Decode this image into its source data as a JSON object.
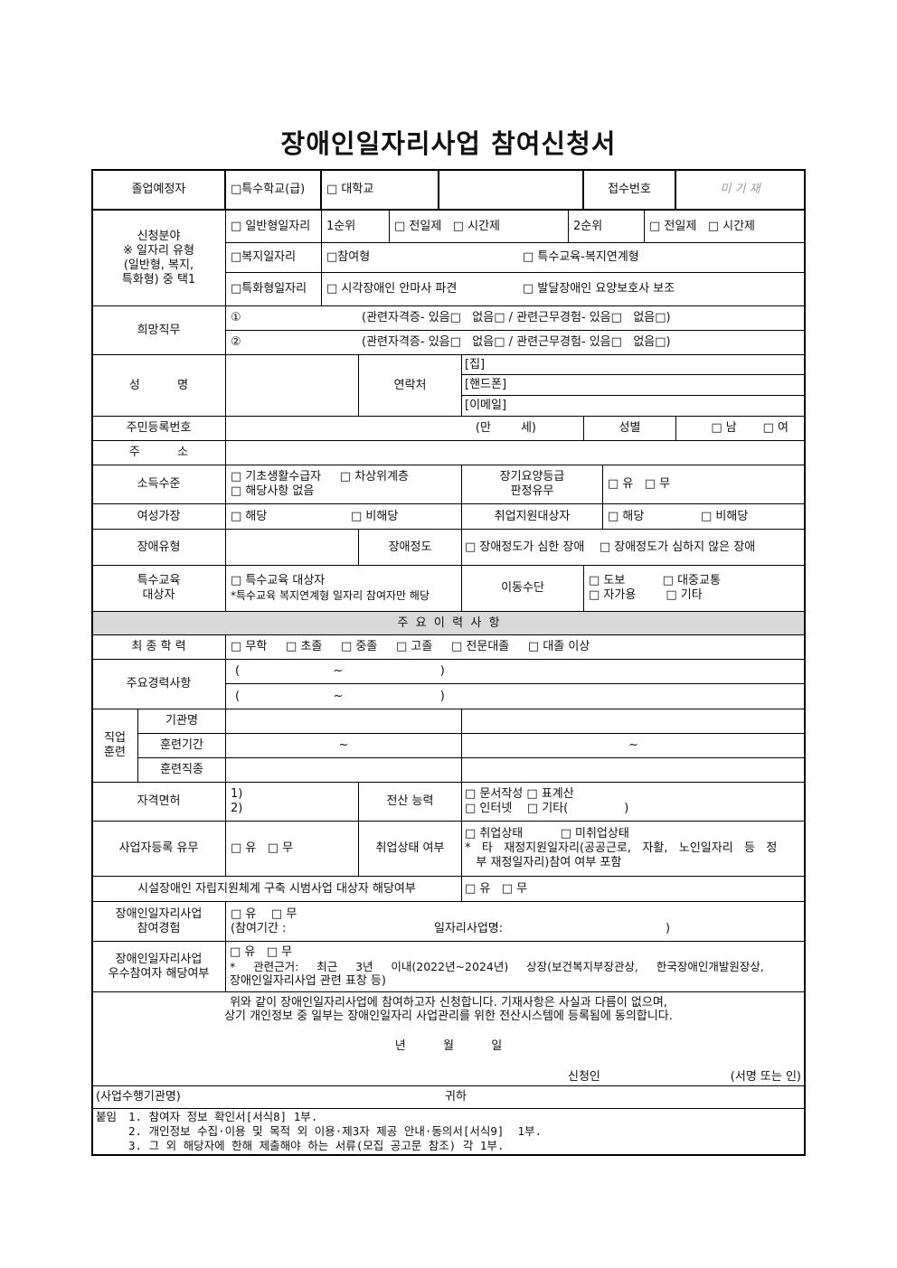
{
  "title": "장애인일자리사업 참여신청서",
  "graduation": {
    "label": "졸업예정자",
    "opt1": "□특수학교(급)",
    "opt2": "□ 대학교",
    "receipt_label": "접수번호",
    "receipt_value": "미 기 재"
  },
  "apply": {
    "label": "신청분야\n※ 일자리 유형\n(일반형, 복지,\n특화형) 중 택1",
    "general": "□ 일반형일자리",
    "rank1": "1순위",
    "rank1_opts": "□ 전일제   □ 시간제",
    "rank2": "2순위",
    "rank2_opts": "□ 전일제   □ 시간제",
    "welfare": "□복지일자리",
    "welfare_opt1": "□참여형",
    "welfare_opt2": "□ 특수교육-복지연계형",
    "special": "□특화형일자리",
    "special_opt1": "□ 시각장애인 안마사 파견",
    "special_opt2": "□ 발달장애인 요양보호사 보조"
  },
  "desired_job": {
    "label": "희망직무",
    "rows": [
      {
        "num": "①",
        "text": "(관련자격증- 있음□   없음□ / 관련근무경험- 있음□   없음□)"
      },
      {
        "num": "②",
        "text": "(관련자격증- 있음□   없음□ / 관련근무경험- 있음□   없음□)"
      }
    ]
  },
  "name": {
    "label": "성          명",
    "contact_label": "연락처",
    "home": "[집]",
    "mobile": "[핸드폰]",
    "email": "[이메일]"
  },
  "resident": {
    "label": "주민등록번호",
    "age": "(만        세)",
    "gender_label": "성별",
    "gender_opts": "□ 남       □ 여"
  },
  "address": {
    "label": "주          소"
  },
  "income": {
    "label": "소득수준",
    "line1": "□ 기초생활수급자     □ 차상위계층",
    "line2": "□ 해당사항 없음",
    "ltc_label": "장기요양등급\n판정유무",
    "ltc_opts": "□ 유   □ 무"
  },
  "female_head": {
    "label": "여성가장",
    "yes": "□ 해당",
    "no": "□ 비해당",
    "support_label": "취업지원대상자",
    "support_yes": "□ 해당",
    "support_no": "□ 비해당"
  },
  "disability": {
    "label": "장애유형",
    "degree_label": "장애정도",
    "degree_opts": "□ 장애정도가 심한 장애    □ 장애정도가 심하지 않은 장애"
  },
  "special_ed": {
    "label": "특수교육\n대상자",
    "line1": "□ 특수교육 대상자",
    "line2": "*특수교육 복지연계형 일자리 참여자만 해당",
    "transport_label": "이동수단",
    "transport_line1": "□ 도보          □ 대중교통",
    "transport_line2": "□ 자가용        □ 기타"
  },
  "history_header": "주  요  이  력  사  항",
  "education": {
    "label": "최 종 학 력",
    "opts": "□ 무학     □ 초졸     □ 중졸     □ 고졸     □ 전문대졸     □ 대졸 이상"
  },
  "career": {
    "label": "주요경력사항",
    "rows": [
      "(                         ~                          )",
      "(                         ~                          )"
    ]
  },
  "training": {
    "label": "직업\n훈련",
    "org": "기관명",
    "period": "훈련기간",
    "field": "훈련직종",
    "tilde": "~"
  },
  "license": {
    "label": "자격면허",
    "lines": "1)\n2)",
    "computer_label": "전산 능력",
    "computer_line1": "□ 문서작성 □ 표계산",
    "computer_line2": "□ 인터넷    □ 기타(               )"
  },
  "business": {
    "label": "사업자등록 유무",
    "opts": "□ 유   □ 무",
    "employ_label": "취업상태 여부",
    "employ_line1": "□ 취업상태          □ 미취업상태",
    "employ_line2": "*   타   재정지원일자리(공공근로,   자활,   노인일자리   등   정",
    "employ_line3": "   부 재정일자리)참여 여부 포함"
  },
  "facility": {
    "label": "시설장애인 자립지원체계 구축 시범사업 대상자 해당여부",
    "opts": "□ 유   □ 무"
  },
  "experience": {
    "label": "장애인일자리사업\n참여경험",
    "opts": "□ 유    □ 무",
    "period": "(참여기간 :",
    "project": "일자리사업명:",
    "close": ")"
  },
  "excellent": {
    "label": "장애인일자리사업\n우수참여자 해당여부",
    "opts": "□ 유   □ 무",
    "line2": "*     관련근거:     최근     3년     이내(2022년~2024년)     상장(보건복지부장관상,     한국장애인개발원장상,",
    "line3": "장애인일자리사업 관련 표창 등)"
  },
  "declaration": {
    "line1": "위와 같이 장애인일자리사업에 참여하고자 신청합니다. 기재사항은 사실과 다름이 없으며,",
    "line2": "상기 개인정보 중 일부는 장애인일자리 사업관리를 위한 전산시스템에 등록됨에 동의합니다.",
    "date": "년          월          일",
    "applicant": "신청인",
    "sign": "(서명 또는 인)"
  },
  "recipient": {
    "org": "(사업수행기관명)",
    "to": "귀하"
  },
  "attachments": {
    "label": "붙임",
    "items": [
      "1. 참여자 정보 확인서[서식8] 1부.",
      "2. 개인정보 수집·이용 및 목적 외 이용·제3자 제공 안내·동의서[서식9]  1부.",
      "3. 그 외 해당자에 한해 제출해야 하는 서류(모집 공고문 참조) 각 1부."
    ]
  }
}
